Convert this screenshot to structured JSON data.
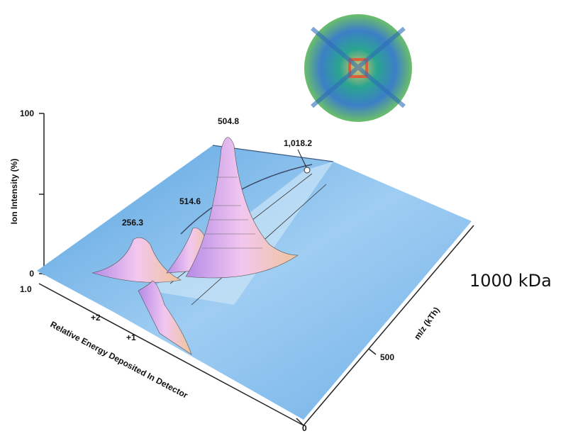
{
  "figure": {
    "y_axis": {
      "label": "Ion Intensity (%)",
      "ticks": [
        "100",
        "0"
      ]
    },
    "energy_axis": {
      "label": "Relative Energy Deposited In Detector",
      "ticks": [
        "1.0",
        "+2",
        "+1"
      ]
    },
    "mz_axis": {
      "label": "m/z (kTh)",
      "ticks": [
        "500",
        "0"
      ]
    },
    "peaks": [
      "256.3",
      "514.6",
      "504.8",
      "1,018.2"
    ],
    "side_label": "1000 kDa"
  }
}
